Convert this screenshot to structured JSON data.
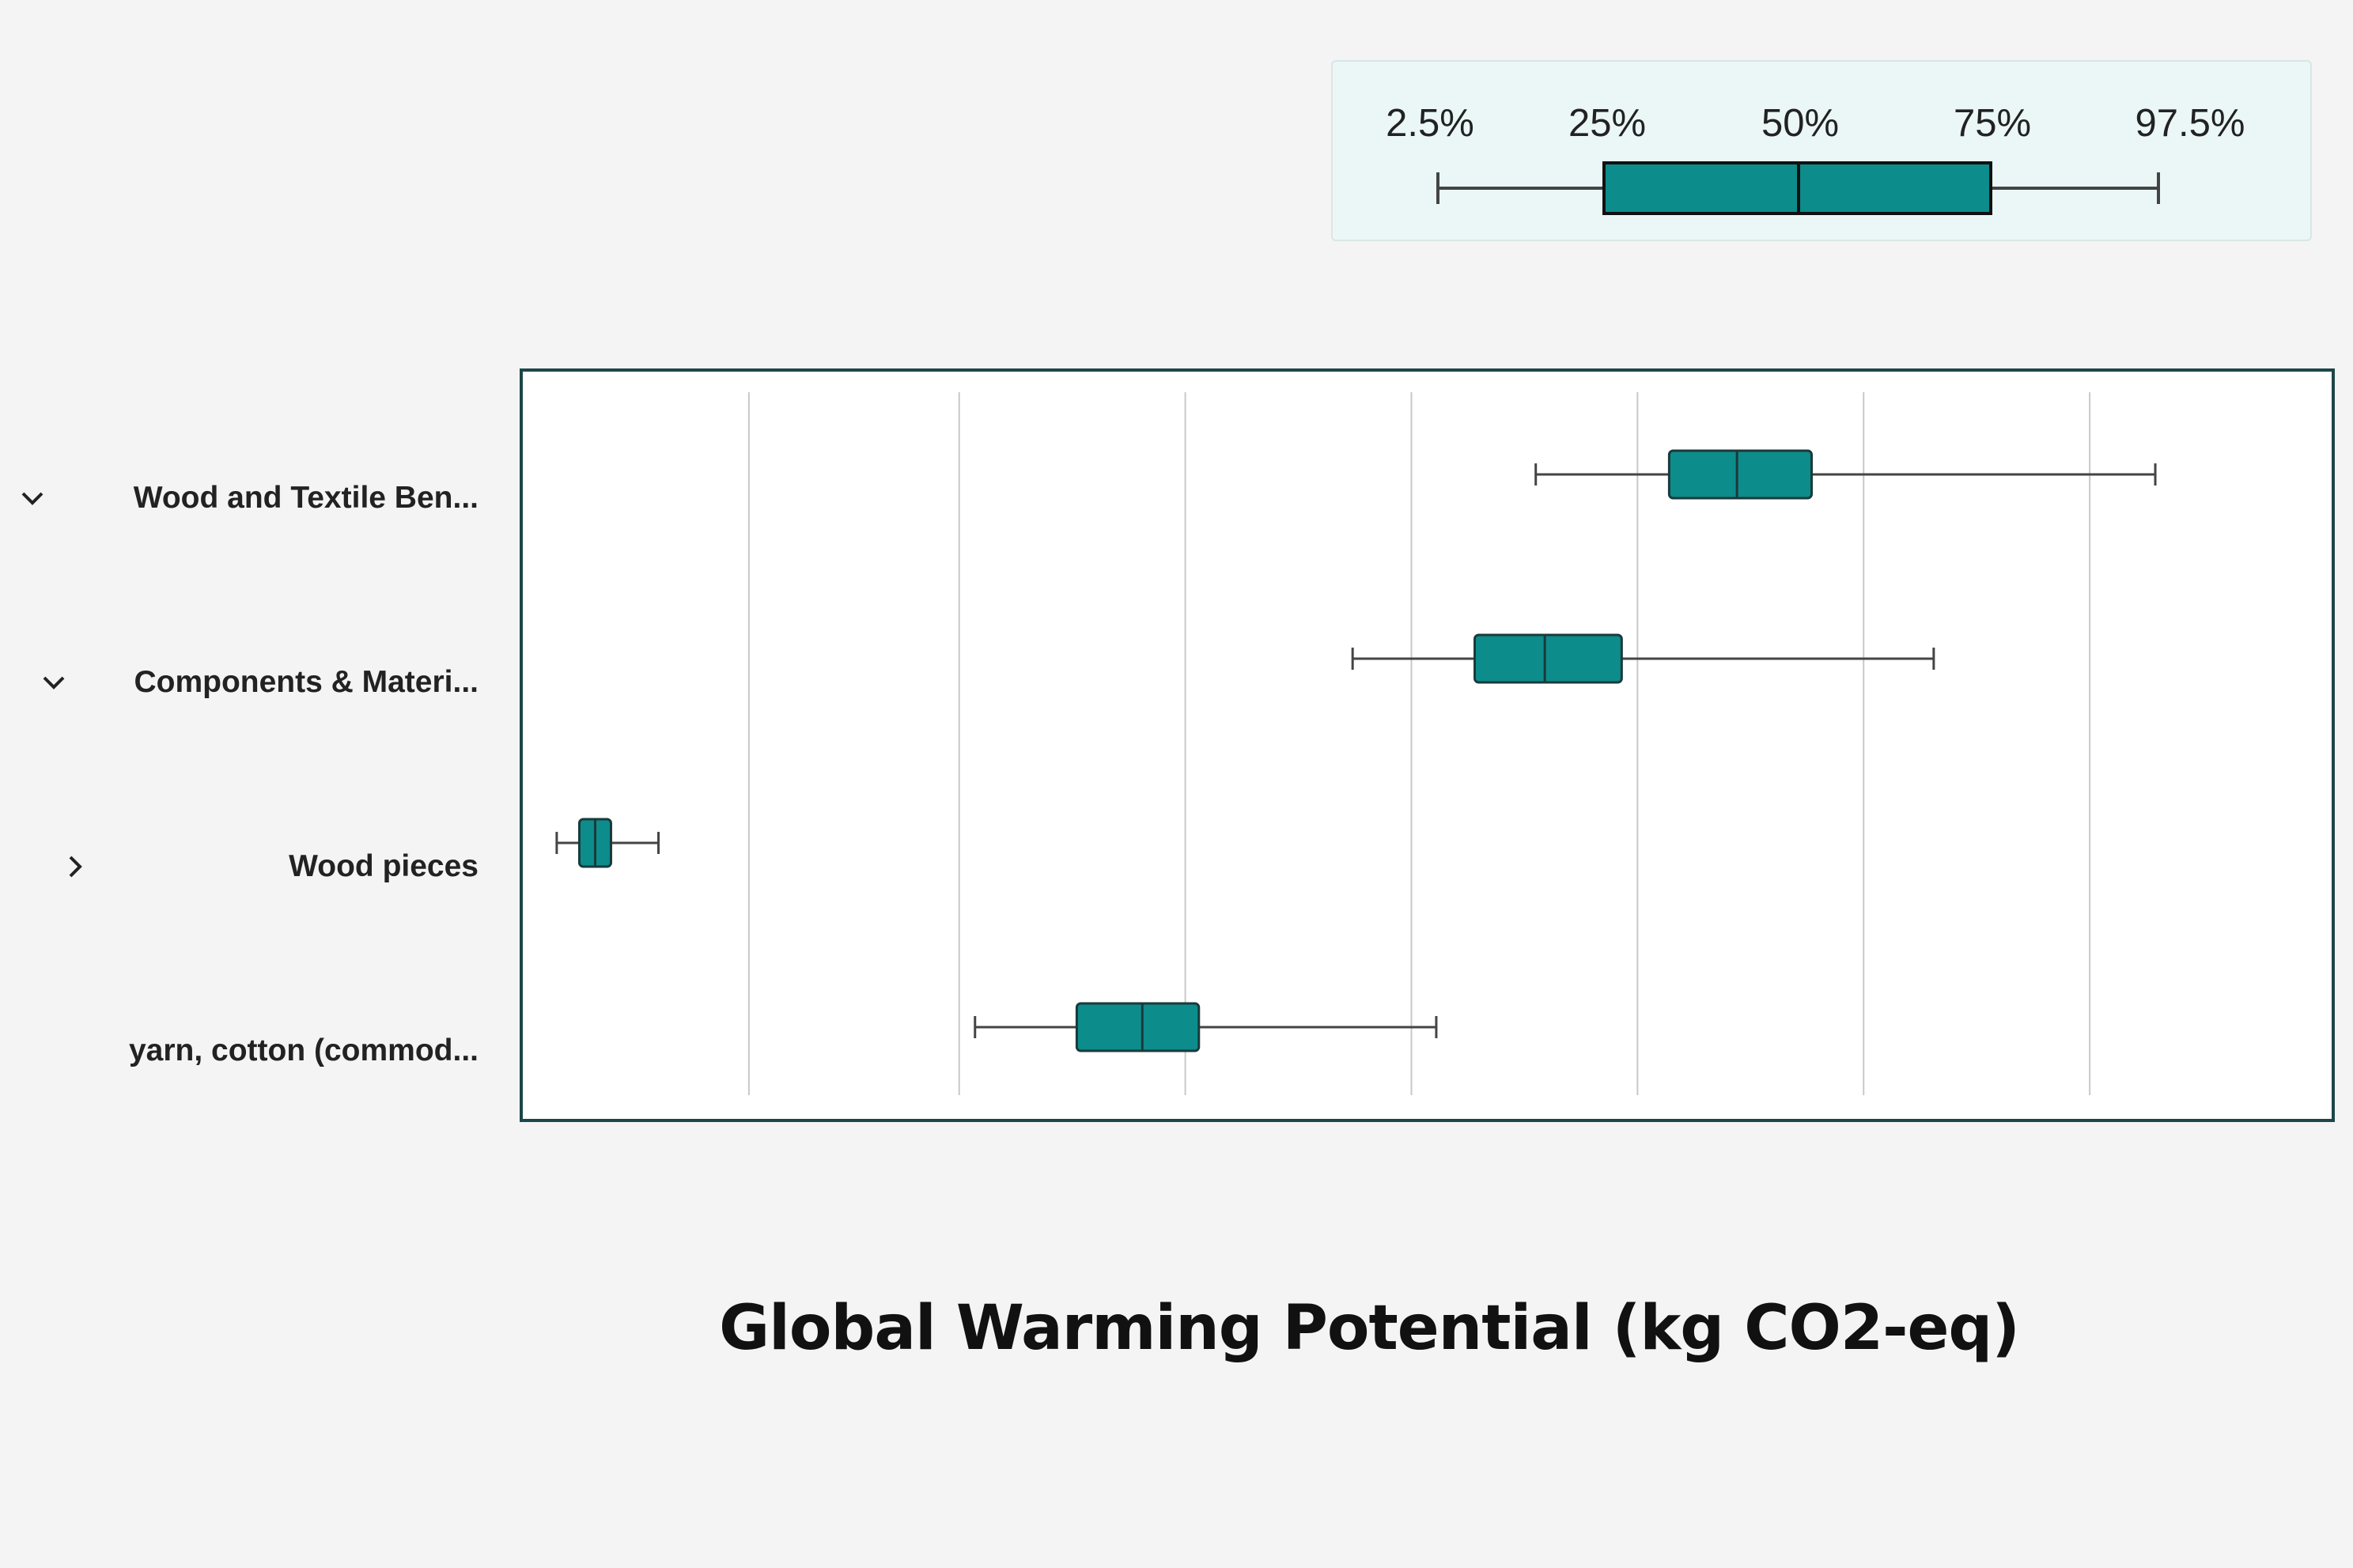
{
  "legend": {
    "labels": [
      "2.5%",
      "25%",
      "50%",
      "75%",
      "97.5%"
    ]
  },
  "chart_data": {
    "type": "boxplot",
    "orientation": "horizontal",
    "title": "",
    "xlabel": "Global Warming Potential (kg CO2-eq)",
    "ylabel": "",
    "xlim": [
      0,
      8
    ],
    "gridlines_x": [
      1,
      1.93,
      2.93,
      3.93,
      4.93,
      5.93,
      6.93
    ],
    "tick_labels_shown": false,
    "box_color": "#0d8c8c",
    "rows": [
      {
        "label": "Wood and Textile Ben...",
        "expander": "expanded",
        "indent": 0,
        "p2_5": 4.48,
        "p25": 5.07,
        "p50": 5.37,
        "p75": 5.7,
        "p97_5": 7.22
      },
      {
        "label": "Components & Materi...",
        "expander": "expanded",
        "indent": 1,
        "p2_5": 3.67,
        "p25": 4.21,
        "p50": 4.52,
        "p75": 4.86,
        "p97_5": 6.24
      },
      {
        "label": "Wood pieces",
        "expander": "collapsed",
        "indent": 2,
        "p2_5": 0.15,
        "p25": 0.25,
        "p50": 0.32,
        "p75": 0.39,
        "p97_5": 0.6
      },
      {
        "label": "yarn, cotton (commod...",
        "expander": "none",
        "indent": 3,
        "p2_5": 2.0,
        "p25": 2.45,
        "p50": 2.74,
        "p75": 2.99,
        "p97_5": 4.04
      }
    ]
  }
}
